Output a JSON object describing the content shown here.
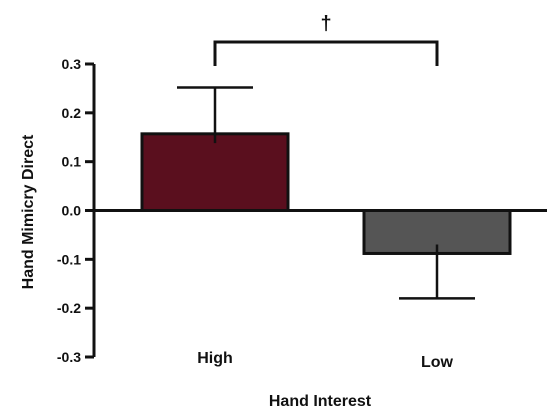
{
  "chart_data": {
    "type": "bar",
    "categories": [
      "High",
      "Low"
    ],
    "values": [
      0.157,
      -0.088
    ],
    "error": [
      0.095,
      0.092
    ],
    "colors": [
      "#5a0f1e",
      "#555555"
    ],
    "xlabel": "Hand Interest",
    "ylabel": "Hand Mimicry Direct",
    "ylim": [
      -0.3,
      0.3
    ],
    "yticks": [
      0.3,
      0.2,
      0.1,
      0.0,
      -0.1,
      -0.2,
      -0.3
    ],
    "ytick_labels": [
      "0.3",
      "0.2",
      "0.1",
      "0.0",
      "-0.1",
      "-0.2",
      "-0.3"
    ],
    "significance": {
      "between": [
        "High",
        "Low"
      ],
      "label": "†"
    },
    "grid": false
  }
}
